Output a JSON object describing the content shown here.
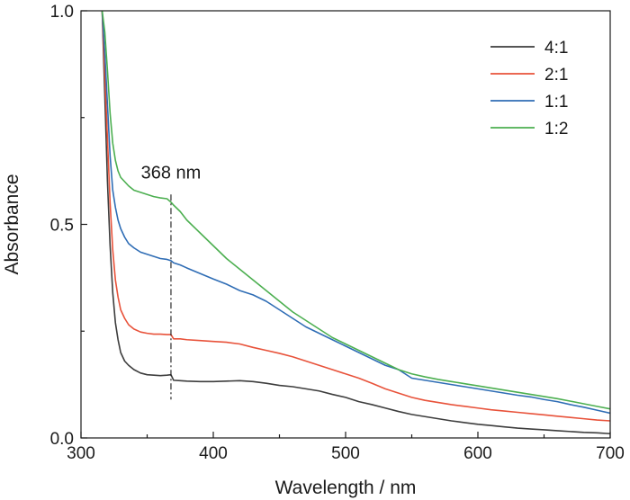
{
  "chart_data": {
    "type": "line",
    "xlabel": "Wavelength / nm",
    "ylabel": "Absorbance",
    "xlim": [
      300,
      700
    ],
    "ylim": [
      0.0,
      1.0
    ],
    "x_ticks": [
      300,
      400,
      500,
      600,
      700
    ],
    "x_tick_labels": [
      "300",
      "400",
      "500",
      "600",
      "700"
    ],
    "y_ticks": [
      0.0,
      0.5,
      1.0
    ],
    "y_tick_labels": [
      "0.0",
      "0.5",
      "1.0"
    ],
    "grid": false,
    "legend_position": "top-right",
    "annotation": {
      "text": "368 nm",
      "x": 368,
      "y_range": [
        0.09,
        0.57
      ]
    },
    "x": [
      316,
      318,
      320,
      322,
      324,
      326,
      328,
      330,
      333,
      336,
      340,
      345,
      350,
      355,
      360,
      365,
      368,
      370,
      375,
      380,
      390,
      400,
      410,
      420,
      430,
      440,
      450,
      460,
      470,
      480,
      490,
      500,
      510,
      520,
      530,
      540,
      550,
      560,
      570,
      580,
      590,
      600,
      610,
      620,
      630,
      640,
      650,
      660,
      670,
      680,
      690,
      700
    ],
    "series": [
      {
        "name": "4:1",
        "color": "#3d3d3d",
        "values": [
          1.0,
          0.8,
          0.6,
          0.45,
          0.34,
          0.27,
          0.23,
          0.2,
          0.18,
          0.17,
          0.16,
          0.152,
          0.148,
          0.147,
          0.146,
          0.147,
          0.148,
          0.135,
          0.134,
          0.133,
          0.132,
          0.132,
          0.133,
          0.134,
          0.132,
          0.128,
          0.123,
          0.12,
          0.115,
          0.11,
          0.102,
          0.095,
          0.085,
          0.078,
          0.07,
          0.062,
          0.055,
          0.05,
          0.045,
          0.04,
          0.036,
          0.032,
          0.029,
          0.026,
          0.023,
          0.021,
          0.019,
          0.017,
          0.015,
          0.013,
          0.012,
          0.01
        ]
      },
      {
        "name": "2:1",
        "color": "#e8523a",
        "values": [
          1.0,
          0.85,
          0.7,
          0.55,
          0.44,
          0.37,
          0.33,
          0.3,
          0.28,
          0.265,
          0.255,
          0.248,
          0.245,
          0.243,
          0.243,
          0.242,
          0.242,
          0.232,
          0.232,
          0.23,
          0.228,
          0.226,
          0.224,
          0.22,
          0.212,
          0.205,
          0.198,
          0.19,
          0.18,
          0.17,
          0.16,
          0.15,
          0.14,
          0.128,
          0.115,
          0.105,
          0.095,
          0.088,
          0.083,
          0.078,
          0.074,
          0.07,
          0.066,
          0.063,
          0.06,
          0.057,
          0.054,
          0.051,
          0.048,
          0.045,
          0.042,
          0.04
        ]
      },
      {
        "name": "1:1",
        "color": "#2f6db5",
        "values": [
          1.0,
          0.9,
          0.78,
          0.66,
          0.58,
          0.54,
          0.51,
          0.49,
          0.47,
          0.455,
          0.445,
          0.435,
          0.43,
          0.425,
          0.42,
          0.418,
          0.415,
          0.41,
          0.405,
          0.398,
          0.385,
          0.372,
          0.36,
          0.345,
          0.335,
          0.32,
          0.3,
          0.28,
          0.26,
          0.245,
          0.23,
          0.215,
          0.2,
          0.185,
          0.17,
          0.16,
          0.14,
          0.135,
          0.13,
          0.125,
          0.12,
          0.115,
          0.11,
          0.105,
          0.1,
          0.096,
          0.09,
          0.085,
          0.078,
          0.072,
          0.065,
          0.058
        ]
      },
      {
        "name": "1:2",
        "color": "#4caf50",
        "values": [
          1.0,
          0.95,
          0.86,
          0.76,
          0.69,
          0.65,
          0.625,
          0.61,
          0.6,
          0.59,
          0.58,
          0.575,
          0.57,
          0.565,
          0.562,
          0.56,
          0.552,
          0.545,
          0.53,
          0.51,
          0.48,
          0.45,
          0.42,
          0.395,
          0.37,
          0.345,
          0.32,
          0.295,
          0.275,
          0.255,
          0.235,
          0.22,
          0.205,
          0.19,
          0.175,
          0.16,
          0.15,
          0.143,
          0.137,
          0.132,
          0.127,
          0.122,
          0.117,
          0.112,
          0.107,
          0.102,
          0.097,
          0.092,
          0.086,
          0.08,
          0.074,
          0.068
        ]
      }
    ]
  }
}
